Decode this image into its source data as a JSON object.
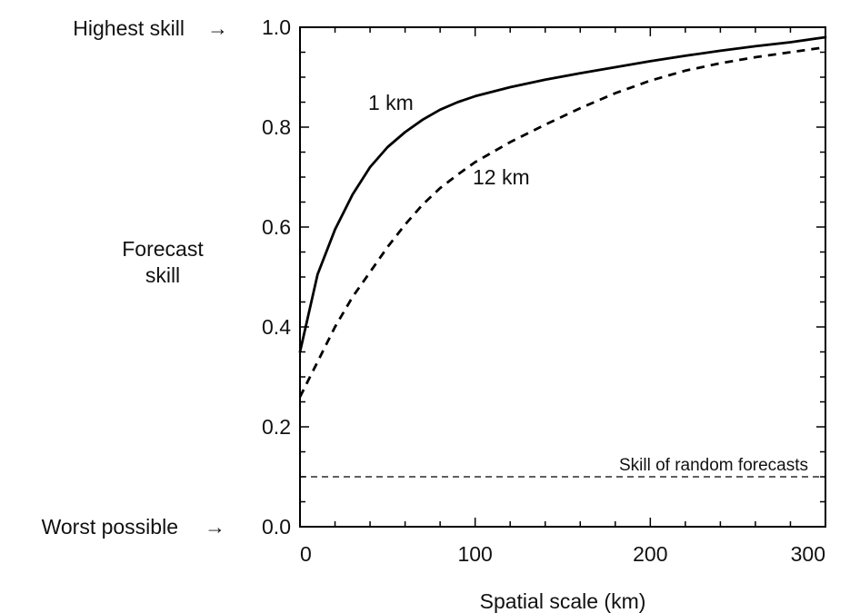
{
  "chart_data": {
    "type": "line",
    "title": "",
    "xlabel": "Spatial scale (km)",
    "ylabel_lines": [
      "Forecast",
      "skill"
    ],
    "xlim": [
      0,
      300
    ],
    "ylim": [
      0,
      1.0
    ],
    "x_ticks": [
      0,
      100,
      200,
      300
    ],
    "x_tick_labels": [
      "0",
      "100",
      "200",
      "300"
    ],
    "y_ticks": [
      0.0,
      0.2,
      0.4,
      0.6,
      0.8,
      1.0
    ],
    "y_tick_labels": [
      "0.0",
      "0.2",
      "0.4",
      "0.6",
      "0.8",
      "1.0"
    ],
    "grid": false,
    "series": [
      {
        "name": "1 km",
        "style": "solid",
        "color": "#000000",
        "x": [
          0,
          10,
          20,
          30,
          40,
          50,
          60,
          70,
          80,
          90,
          100,
          120,
          140,
          160,
          180,
          200,
          220,
          240,
          260,
          280,
          300
        ],
        "y": [
          0.35,
          0.505,
          0.595,
          0.665,
          0.72,
          0.76,
          0.79,
          0.815,
          0.835,
          0.85,
          0.862,
          0.88,
          0.895,
          0.908,
          0.92,
          0.932,
          0.943,
          0.953,
          0.962,
          0.97,
          0.98
        ]
      },
      {
        "name": "12 km",
        "style": "dashed",
        "color": "#000000",
        "x": [
          0,
          5,
          10,
          20,
          30,
          40,
          50,
          60,
          70,
          80,
          90,
          100,
          120,
          140,
          160,
          180,
          200,
          220,
          240,
          260,
          280,
          300
        ],
        "y": [
          0.26,
          0.295,
          0.33,
          0.4,
          0.46,
          0.51,
          0.56,
          0.605,
          0.645,
          0.678,
          0.705,
          0.73,
          0.77,
          0.805,
          0.838,
          0.868,
          0.893,
          0.913,
          0.928,
          0.94,
          0.95,
          0.96
        ]
      }
    ],
    "reference_lines": [
      {
        "y": 0.1,
        "style": "dashed",
        "label": "Skill of random forecasts"
      }
    ],
    "annotations": [
      {
        "text": "Highest skill",
        "arrow": "→",
        "y": 1.0
      },
      {
        "text": "Worst possible",
        "arrow": "→",
        "y": 0.0
      }
    ],
    "series_labels": [
      {
        "text": "1 km",
        "series": "1 km"
      },
      {
        "text": "12 km",
        "series": "12 km"
      }
    ]
  }
}
